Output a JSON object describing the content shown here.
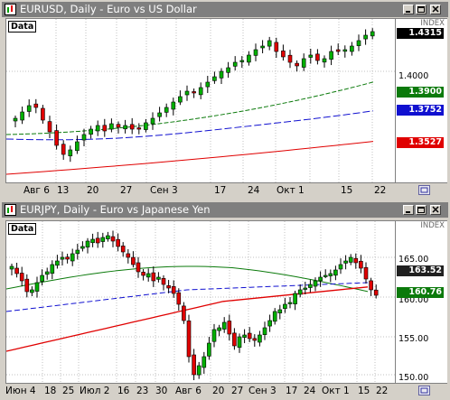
{
  "top": {
    "title": "EURUSD, Daily - Euro vs US Dollar",
    "data_label": "Data",
    "index_label": "INDEX",
    "price_labels": [
      "1.4000"
    ],
    "tags": {
      "last": "1.4315",
      "green": "1.3900",
      "blue": "1.3752",
      "red": "1.3527"
    },
    "x_labels": [
      "Авг 6",
      "13",
      "20",
      "27",
      "Сен 3",
      "17",
      "24",
      "Окт 1",
      "15",
      "22"
    ],
    "colors": {
      "up": "#00b000",
      "down": "#e00000",
      "ma_green": "#0b7a0b",
      "ma_blue": "#1010d0",
      "ma_red": "#e00000"
    }
  },
  "bottom": {
    "title": "EURJPY, Daily - Euro vs Japanese Yen",
    "data_label": "Data",
    "index_label": "INDEX",
    "price_labels": [
      "165.00",
      "160.00",
      "155.00",
      "150.00"
    ],
    "tags": {
      "last": "163.52",
      "green": "160.76"
    },
    "x_labels": [
      "Июн 4",
      "18",
      "25",
      "Июл 2",
      "16",
      "23",
      "30",
      "Авг 6",
      "20",
      "27",
      "Сен 3",
      "17",
      "24",
      "Окт 1",
      "15",
      "22"
    ],
    "colors": {
      "up": "#00b000",
      "down": "#e00000",
      "ma_green": "#0b7a0b",
      "ma_blue": "#1010d0",
      "ma_red": "#e00000"
    }
  },
  "icons": [
    "chart-window-icon",
    "minimize-icon",
    "maximize-icon",
    "close-icon",
    "scroll-left-icon",
    "settings-corner-icon"
  ]
}
